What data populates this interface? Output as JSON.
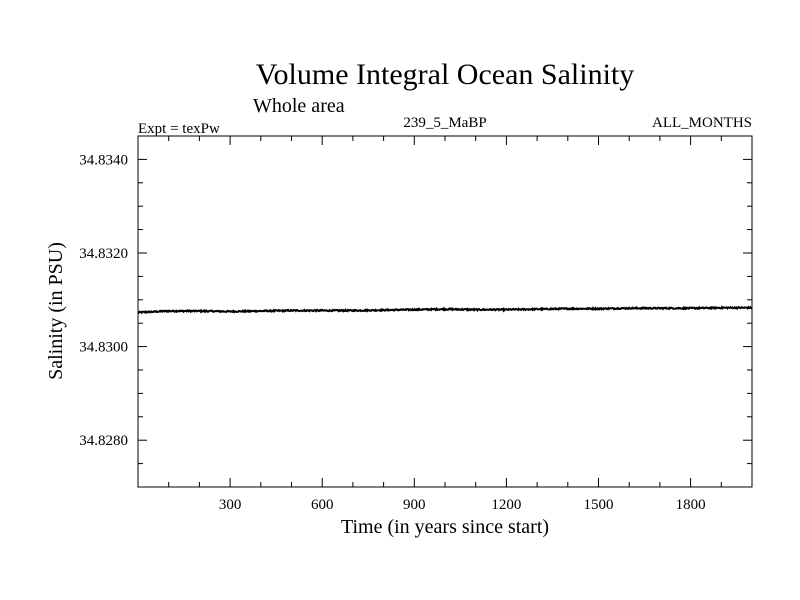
{
  "chart_data": {
    "type": "line",
    "title": "Volume Integral Ocean Salinity",
    "subtitle": "Whole area",
    "experiment_label": "Expt = texPw",
    "run_label": "239_5_MaBP",
    "period_label": "ALL_MONTHS",
    "xlabel": "Time (in years since start)",
    "ylabel": "Salinity (in PSU)",
    "xlim": [
      0,
      2000
    ],
    "ylim": [
      34.827,
      34.8345
    ],
    "x_ticks": [
      300,
      600,
      900,
      1200,
      1500,
      1800
    ],
    "x_tick_labels": [
      "300",
      "600",
      "900",
      "1200",
      "1500",
      "1800"
    ],
    "y_ticks": [
      34.828,
      34.83,
      34.832,
      34.834
    ],
    "y_tick_labels": [
      "34.8280",
      "34.8300",
      "34.8320",
      "34.8340"
    ],
    "series": [
      {
        "name": "salinity",
        "x": [
          0,
          100,
          200,
          300,
          400,
          500,
          600,
          700,
          800,
          900,
          1000,
          1100,
          1200,
          1300,
          1400,
          1500,
          1600,
          1700,
          1800,
          1900,
          2000
        ],
        "values": [
          34.83073,
          34.83076,
          34.83076,
          34.83075,
          34.83076,
          34.83077,
          34.83077,
          34.83077,
          34.83078,
          34.83079,
          34.8308,
          34.83079,
          34.83079,
          34.8308,
          34.83081,
          34.83081,
          34.83082,
          34.83082,
          34.83082,
          34.83083,
          34.83083
        ]
      }
    ]
  }
}
